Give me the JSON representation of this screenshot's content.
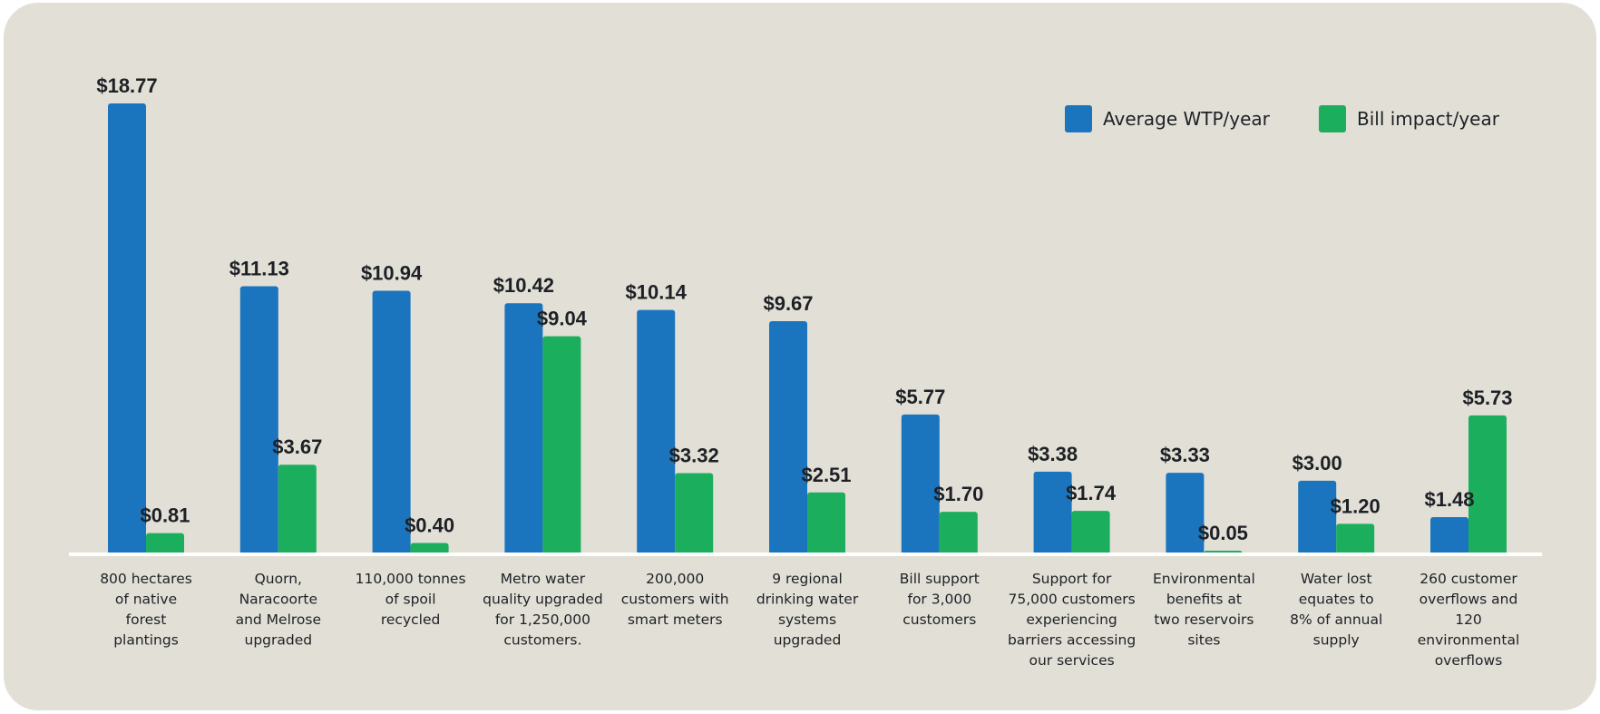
{
  "chart_data": {
    "type": "bar",
    "categories": [
      "800 hectares of native forest plantings",
      "Quorn, Naracoorte and Melrose upgraded",
      "110,000 tonnes of spoil recycled",
      "Metro water quality upgraded for 1,250,000 customers.",
      "200,000 customers with smart meters",
      "9 regional drinking water systems upgraded",
      "Bill support for 3,000 customers",
      "Support for 75,000 customers experiencing barriers accessing our services",
      "Environmental benefits at two reservoirs sites",
      "Water lost equates to 8% of annual supply",
      "260 customer overflows and 120 environmental overflows"
    ],
    "category_lines": [
      [
        "800 hectares",
        "of native",
        "forest",
        "plantings"
      ],
      [
        "Quorn,",
        "Naracoorte",
        "and Melrose",
        "upgraded"
      ],
      [
        "110,000 tonnes",
        "of spoil",
        "recycled"
      ],
      [
        "Metro water",
        "quality upgraded",
        "for 1,250,000",
        "customers."
      ],
      [
        "200,000",
        "customers with",
        "smart meters"
      ],
      [
        "9 regional",
        "drinking water",
        "systems",
        "upgraded"
      ],
      [
        "Bill support",
        "for 3,000",
        "customers"
      ],
      [
        "Support for",
        "75,000 customers",
        "experiencing",
        "barriers accessing",
        "our services"
      ],
      [
        "Environmental",
        "benefits at",
        "two reservoirs",
        "sites"
      ],
      [
        "Water lost",
        "equates to",
        "8% of annual",
        "supply"
      ],
      [
        "260 customer",
        "overflows and",
        "120",
        "environmental",
        "overflows"
      ]
    ],
    "series": [
      {
        "name": "Average WTP/year",
        "color": "#1b75be",
        "values": [
          18.77,
          11.13,
          10.94,
          10.42,
          10.14,
          9.67,
          5.77,
          3.38,
          3.33,
          3.0,
          1.48
        ],
        "labels": [
          "$18.77",
          "$11.13",
          "$10.94",
          "$10.42",
          "$10.14",
          "$9.67",
          "$5.77",
          "$3.38",
          "$3.33",
          "$3.00",
          "$1.48"
        ]
      },
      {
        "name": "Bill impact/year",
        "color": "#1baf5d",
        "values": [
          0.81,
          3.67,
          0.4,
          9.04,
          3.32,
          2.51,
          1.7,
          1.74,
          0.05,
          1.2,
          5.73
        ],
        "labels": [
          "$0.81",
          "$3.67",
          "$0.40",
          "$9.04",
          "$3.32",
          "$2.51",
          "$1.70",
          "$1.74",
          "$0.05",
          "$1.20",
          "$5.73"
        ]
      }
    ],
    "ylim": [
      0,
      18.77
    ],
    "grid": false,
    "legend": "top-right"
  }
}
